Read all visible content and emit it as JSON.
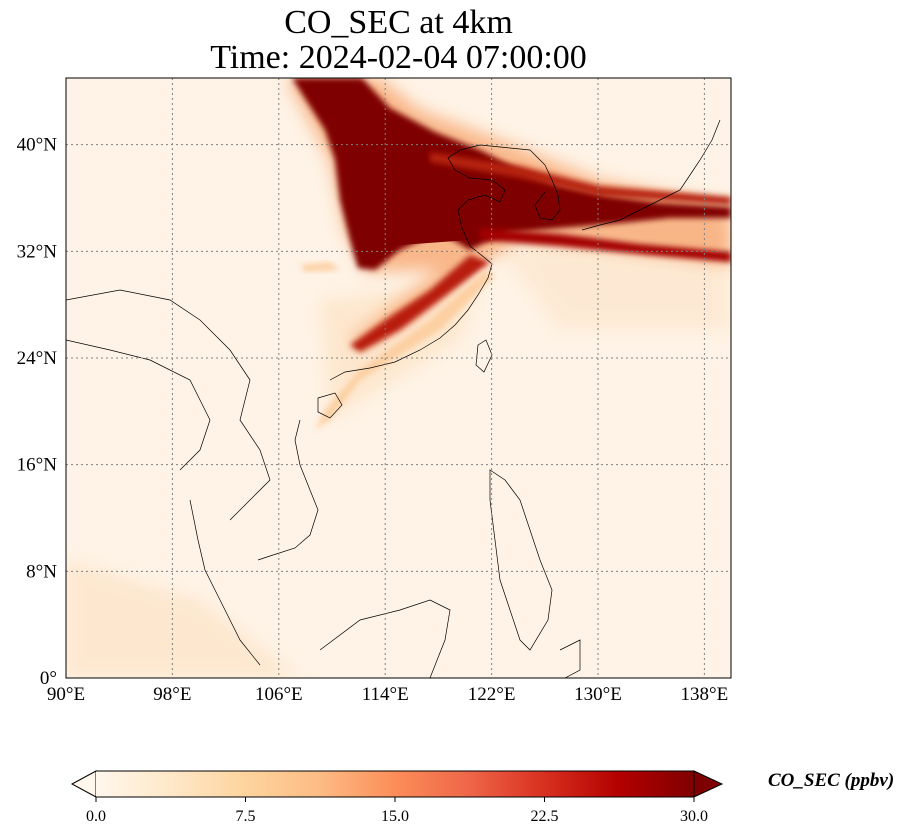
{
  "title": "CO_SEC at 4km",
  "subtitle": "Time: 2024-02-04 07:00:00",
  "lon_ticks": [
    {
      "value": 90,
      "label": "90°E"
    },
    {
      "value": 98,
      "label": "98°E"
    },
    {
      "value": 106,
      "label": "106°E"
    },
    {
      "value": 114,
      "label": "114°E"
    },
    {
      "value": 122,
      "label": "122°E"
    },
    {
      "value": 130,
      "label": "130°E"
    },
    {
      "value": 138,
      "label": "138°E"
    }
  ],
  "lat_ticks": [
    {
      "value": 0,
      "label": "0°"
    },
    {
      "value": 8,
      "label": "8°N"
    },
    {
      "value": 16,
      "label": "16°N"
    },
    {
      "value": 24,
      "label": "24°N"
    },
    {
      "value": 32,
      "label": "32°N"
    },
    {
      "value": 40,
      "label": "40°N"
    }
  ],
  "extent": {
    "lon_min": 90,
    "lon_max": 140,
    "lat_min": 0,
    "lat_max": 45
  },
  "colorbar": {
    "label": "CO_SEC (ppbv)",
    "min": 0,
    "max": 30,
    "extend": "both",
    "ticks": [
      {
        "value": 0,
        "label": "0.0"
      },
      {
        "value": 7.5,
        "label": "7.5"
      },
      {
        "value": 15,
        "label": "15.0"
      },
      {
        "value": 22.5,
        "label": "22.5"
      },
      {
        "value": 30,
        "label": "30.0"
      }
    ],
    "colors": [
      "#fff7ec",
      "#fee8c8",
      "#fdd49e",
      "#fdbb84",
      "#fc8d59",
      "#ef6548",
      "#d7301f",
      "#b30000",
      "#7f0000"
    ]
  },
  "colors": {
    "background_field": "#fef3e6",
    "gridline": "#808080",
    "coastline": "#000000"
  }
}
